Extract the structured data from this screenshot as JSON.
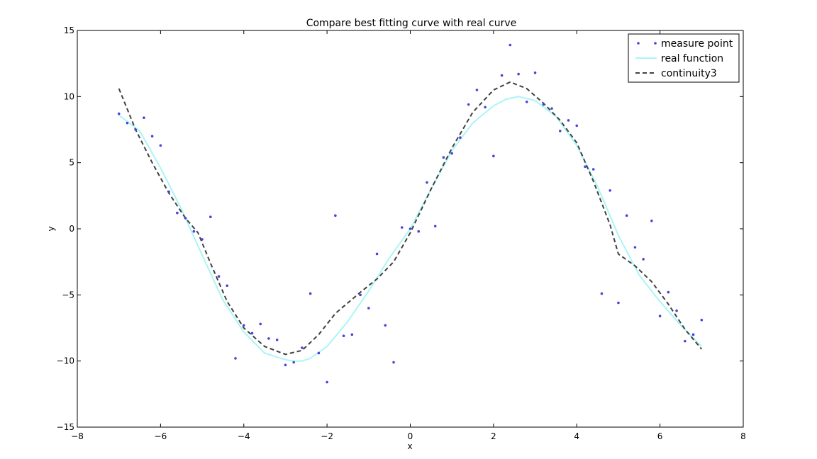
{
  "chart_data": {
    "type": "line",
    "title": "Compare best fitting curve with real curve",
    "xlabel": "x",
    "ylabel": "y",
    "xlim": [
      -8,
      8
    ],
    "ylim": [
      -15,
      15
    ],
    "xticks": [
      -8,
      -6,
      -4,
      -2,
      0,
      2,
      4,
      6,
      8
    ],
    "yticks": [
      -15,
      -10,
      -5,
      0,
      5,
      10,
      15
    ],
    "xtick_labels": [
      "−8",
      "−6",
      "−4",
      "−2",
      "0",
      "2",
      "4",
      "6",
      "8"
    ],
    "ytick_labels": [
      "−15",
      "−10",
      "−5",
      "0",
      "5",
      "10",
      "15"
    ],
    "grid": false,
    "legend_position": "top-right",
    "series": [
      {
        "name": "measure point",
        "kind": "scatter",
        "color": "#4444dd",
        "x": [
          -7.0,
          -6.8,
          -6.6,
          -6.4,
          -6.2,
          -6.0,
          -5.8,
          -5.6,
          -5.4,
          -5.2,
          -5.0,
          -4.8,
          -4.6,
          -4.4,
          -4.2,
          -4.0,
          -3.8,
          -3.6,
          -3.4,
          -3.2,
          -3.0,
          -2.8,
          -2.6,
          -2.4,
          -2.2,
          -2.0,
          -1.8,
          -1.6,
          -1.4,
          -1.2,
          -1.0,
          -0.8,
          -0.6,
          -0.4,
          -0.2,
          0.0,
          0.2,
          0.4,
          0.6,
          0.8,
          1.0,
          1.2,
          1.4,
          1.6,
          1.8,
          2.0,
          2.2,
          2.4,
          2.6,
          2.8,
          3.0,
          3.2,
          3.4,
          3.6,
          3.8,
          4.0,
          4.2,
          4.4,
          4.6,
          4.8,
          5.0,
          5.2,
          5.4,
          5.6,
          5.8,
          6.0,
          6.2,
          6.4,
          6.6,
          6.8,
          7.0
        ],
        "y": [
          8.7,
          8.0,
          7.5,
          8.4,
          7.0,
          6.3,
          2.8,
          1.2,
          0.8,
          -0.2,
          -0.8,
          0.9,
          -3.6,
          -4.3,
          -9.8,
          -7.3,
          -7.9,
          -7.2,
          -8.3,
          -8.4,
          -10.3,
          -10.1,
          -9.0,
          -4.9,
          -9.4,
          -11.6,
          1.0,
          -8.1,
          -8.0,
          -5.0,
          -6.0,
          -1.9,
          -7.3,
          -10.1,
          0.1,
          0.0,
          -0.2,
          3.5,
          0.2,
          5.4,
          5.7,
          6.9,
          9.4,
          10.5,
          9.2,
          5.5,
          11.6,
          13.9,
          11.7,
          9.6,
          11.8,
          9.4,
          9.1,
          7.4,
          8.2,
          7.8,
          4.7,
          4.5,
          -4.9,
          2.9,
          -5.6,
          1.0,
          -1.4,
          -2.3,
          0.6,
          -6.6,
          -4.8,
          -6.2,
          -8.5,
          -8.0,
          -6.9
        ]
      },
      {
        "name": "real function",
        "kind": "line",
        "color": "#aaf5f5",
        "x": [
          -7.0,
          -6.5,
          -6.0,
          -5.5,
          -5.0,
          -4.5,
          -4.0,
          -3.5,
          -3.0,
          -2.8,
          -2.6,
          -2.4,
          -2.0,
          -1.5,
          -1.0,
          -0.5,
          0.0,
          0.5,
          1.0,
          1.5,
          2.0,
          2.3,
          2.6,
          3.0,
          3.5,
          4.0,
          4.5,
          5.0,
          5.5,
          6.0,
          6.5,
          7.0
        ],
        "y": [
          8.6,
          7.4,
          4.6,
          1.5,
          -2.0,
          -5.4,
          -7.8,
          -9.4,
          -9.9,
          -10.0,
          -10.0,
          -9.8,
          -8.9,
          -7.0,
          -4.7,
          -2.2,
          0.0,
          3.0,
          5.9,
          8.0,
          9.3,
          9.8,
          10.0,
          9.7,
          8.5,
          6.3,
          3.2,
          -0.5,
          -3.5,
          -5.5,
          -7.3,
          -8.9
        ]
      },
      {
        "name": "continuity3",
        "kind": "line",
        "dashed": true,
        "color": "#404040",
        "x": [
          -7.0,
          -6.6,
          -6.2,
          -5.8,
          -5.4,
          -5.1,
          -4.8,
          -4.4,
          -4.0,
          -3.5,
          -3.0,
          -2.6,
          -2.2,
          -1.8,
          -1.2,
          -0.8,
          -0.4,
          0.0,
          0.5,
          1.0,
          1.5,
          2.0,
          2.4,
          2.8,
          3.2,
          3.6,
          4.0,
          4.4,
          4.8,
          5.0,
          5.4,
          5.8,
          6.2,
          6.6,
          7.0
        ],
        "y": [
          10.6,
          7.5,
          5.0,
          2.7,
          0.8,
          -0.3,
          -2.6,
          -5.5,
          -7.5,
          -8.9,
          -9.5,
          -9.2,
          -8.0,
          -6.4,
          -4.8,
          -3.8,
          -2.5,
          -0.3,
          3.0,
          6.1,
          8.8,
          10.5,
          11.1,
          10.6,
          9.5,
          8.2,
          6.5,
          3.6,
          0.3,
          -1.9,
          -2.8,
          -4.0,
          -5.7,
          -7.6,
          -9.1
        ]
      }
    ]
  }
}
